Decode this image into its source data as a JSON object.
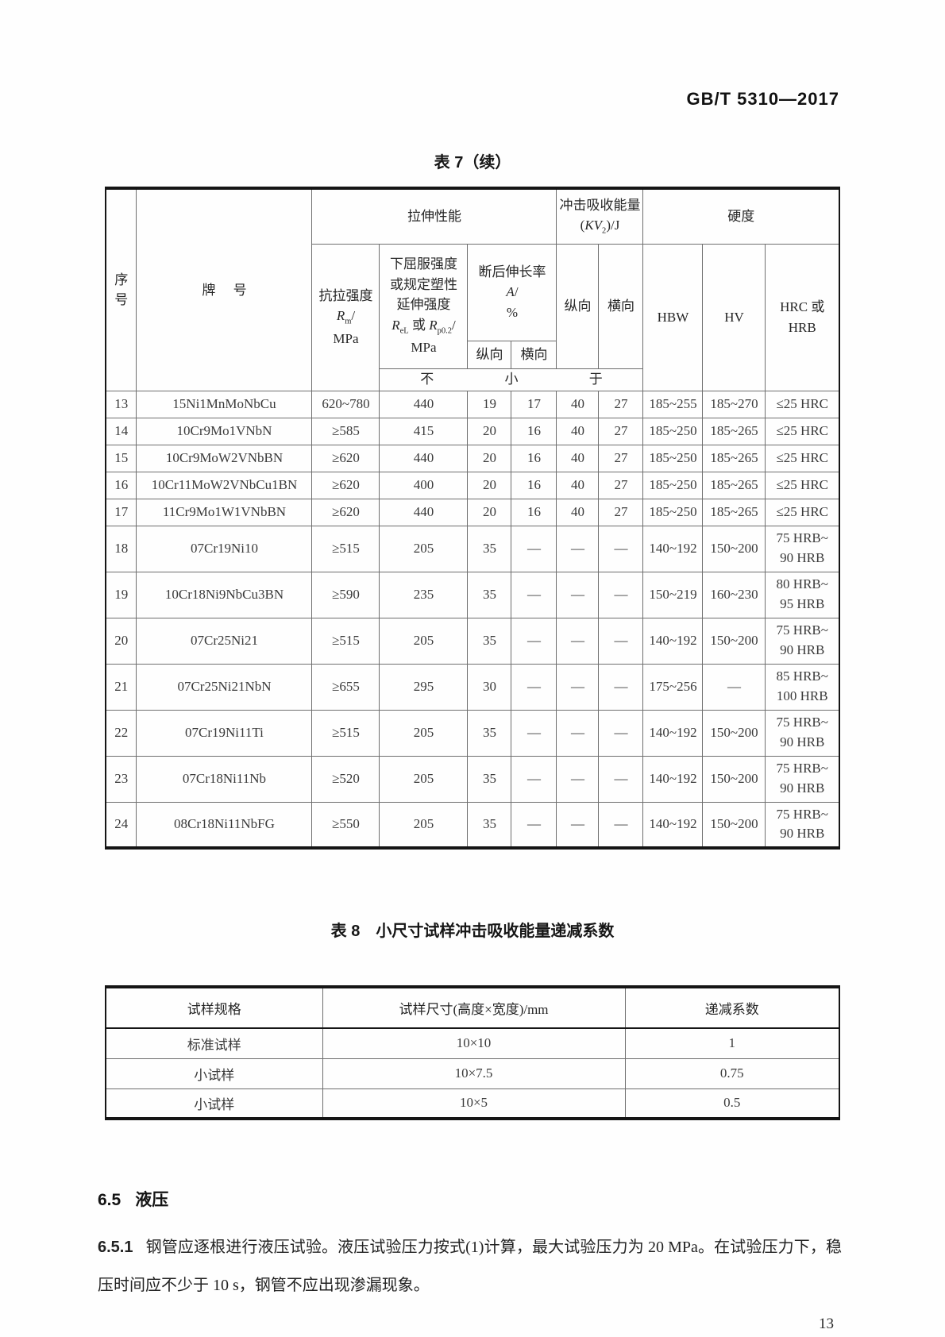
{
  "header": {
    "standard_number": "GB/T 5310—2017"
  },
  "table7": {
    "title": "表 7（续）",
    "header": {
      "col_seq": "序号",
      "col_grade": "牌 号",
      "group_tensile": "拉伸性能",
      "group_impact_html": "冲击吸收能量<br>(<i>KV</i><sub>2</sub>)/J",
      "group_hardness": "硬度",
      "tensile_rm_html": "抗拉强度<br><i>R</i><sub>m</sub>/<br>MPa",
      "yield_html": "下屈服强度<br>或规定塑性<br>延伸强度<br><i>R</i><sub>eL</sub> 或 <i>R</i><sub>p0.2</sub>/<br>MPa",
      "elongation_html": "断后伸长率<br><i>A</i>/<br>%",
      "longitudinal": "纵向",
      "transverse": "横向",
      "hbw": "HBW",
      "hv": "HV",
      "hrc_hrb_html": "HRC 或<br>HRB",
      "not_less_than": "不 小 于"
    },
    "rows": [
      {
        "seq": "13",
        "grade": "15Ni1MnMoNbCu",
        "rm": "620~780",
        "rel": "440",
        "a_long": "19",
        "a_trans": "17",
        "kv_long": "40",
        "kv_trans": "27",
        "hbw": "185~255",
        "hv": "185~270",
        "hrc_hrb": "≤25 HRC"
      },
      {
        "seq": "14",
        "grade": "10Cr9Mo1VNbN",
        "rm": "≥585",
        "rel": "415",
        "a_long": "20",
        "a_trans": "16",
        "kv_long": "40",
        "kv_trans": "27",
        "hbw": "185~250",
        "hv": "185~265",
        "hrc_hrb": "≤25 HRC"
      },
      {
        "seq": "15",
        "grade": "10Cr9MoW2VNbBN",
        "rm": "≥620",
        "rel": "440",
        "a_long": "20",
        "a_trans": "16",
        "kv_long": "40",
        "kv_trans": "27",
        "hbw": "185~250",
        "hv": "185~265",
        "hrc_hrb": "≤25 HRC"
      },
      {
        "seq": "16",
        "grade": "10Cr11MoW2VNbCu1BN",
        "rm": "≥620",
        "rel": "400",
        "a_long": "20",
        "a_trans": "16",
        "kv_long": "40",
        "kv_trans": "27",
        "hbw": "185~250",
        "hv": "185~265",
        "hrc_hrb": "≤25 HRC"
      },
      {
        "seq": "17",
        "grade": "11Cr9Mo1W1VNbBN",
        "rm": "≥620",
        "rel": "440",
        "a_long": "20",
        "a_trans": "16",
        "kv_long": "40",
        "kv_trans": "27",
        "hbw": "185~250",
        "hv": "185~265",
        "hrc_hrb": "≤25 HRC"
      },
      {
        "seq": "18",
        "grade": "07Cr19Ni10",
        "rm": "≥515",
        "rel": "205",
        "a_long": "35",
        "a_trans": "—",
        "kv_long": "—",
        "kv_trans": "—",
        "hbw": "140~192",
        "hv": "150~200",
        "hrc_hrb": "75 HRB~\n90 HRB"
      },
      {
        "seq": "19",
        "grade": "10Cr18Ni9NbCu3BN",
        "rm": "≥590",
        "rel": "235",
        "a_long": "35",
        "a_trans": "—",
        "kv_long": "—",
        "kv_trans": "—",
        "hbw": "150~219",
        "hv": "160~230",
        "hrc_hrb": "80 HRB~\n95 HRB"
      },
      {
        "seq": "20",
        "grade": "07Cr25Ni21",
        "rm": "≥515",
        "rel": "205",
        "a_long": "35",
        "a_trans": "—",
        "kv_long": "—",
        "kv_trans": "—",
        "hbw": "140~192",
        "hv": "150~200",
        "hrc_hrb": "75 HRB~\n90 HRB"
      },
      {
        "seq": "21",
        "grade": "07Cr25Ni21NbN",
        "rm": "≥655",
        "rel": "295",
        "a_long": "30",
        "a_trans": "—",
        "kv_long": "—",
        "kv_trans": "—",
        "hbw": "175~256",
        "hv": "—",
        "hrc_hrb": "85 HRB~\n100 HRB"
      },
      {
        "seq": "22",
        "grade": "07Cr19Ni11Ti",
        "rm": "≥515",
        "rel": "205",
        "a_long": "35",
        "a_trans": "—",
        "kv_long": "—",
        "kv_trans": "—",
        "hbw": "140~192",
        "hv": "150~200",
        "hrc_hrb": "75 HRB~\n90 HRB"
      },
      {
        "seq": "23",
        "grade": "07Cr18Ni11Nb",
        "rm": "≥520",
        "rel": "205",
        "a_long": "35",
        "a_trans": "—",
        "kv_long": "—",
        "kv_trans": "—",
        "hbw": "140~192",
        "hv": "150~200",
        "hrc_hrb": "75 HRB~\n90 HRB"
      },
      {
        "seq": "24",
        "grade": "08Cr18Ni11NbFG",
        "rm": "≥550",
        "rel": "205",
        "a_long": "35",
        "a_trans": "—",
        "kv_long": "—",
        "kv_trans": "—",
        "hbw": "140~192",
        "hv": "150~200",
        "hrc_hrb": "75 HRB~\n90 HRB"
      }
    ]
  },
  "table8": {
    "title": "表 8　小尺寸试样冲击吸收能量递减系数",
    "headers": [
      "试样规格",
      "试样尺寸(高度×宽度)/mm",
      "递减系数"
    ],
    "rows": [
      [
        "标准试样",
        "10×10",
        "1"
      ],
      [
        "小试样",
        "10×7.5",
        "0.75"
      ],
      [
        "小试样",
        "10×5",
        "0.5"
      ]
    ]
  },
  "section_6_5": {
    "number": "6.5",
    "title": "液压"
  },
  "clause_6_5_1": {
    "number": "6.5.1",
    "text": "钢管应逐根进行液压试验。液压试验压力按式(1)计算，最大试验压力为 20 MPa。在试验压力下，稳压时间应不少于 10 s，钢管不应出现渗漏现象。"
  },
  "footer": {
    "page_number": "13"
  }
}
